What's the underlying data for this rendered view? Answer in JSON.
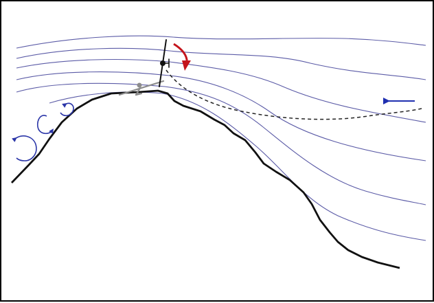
{
  "colors": {
    "streamline": "#5a5aa6",
    "terrain": "#111111",
    "rotor_arrow": "#c4141c",
    "eddy": "#2b36a8",
    "wind_arrow": "#1f2fb0",
    "flight_path": "#222222",
    "glider_shadow": "#8c8c8c",
    "frame": "#000000"
  },
  "icons": [
    "helicopter-icon",
    "glider-icon",
    "rotation-arrow-icon",
    "wind-direction-arrow-icon",
    "eddy-icon"
  ]
}
